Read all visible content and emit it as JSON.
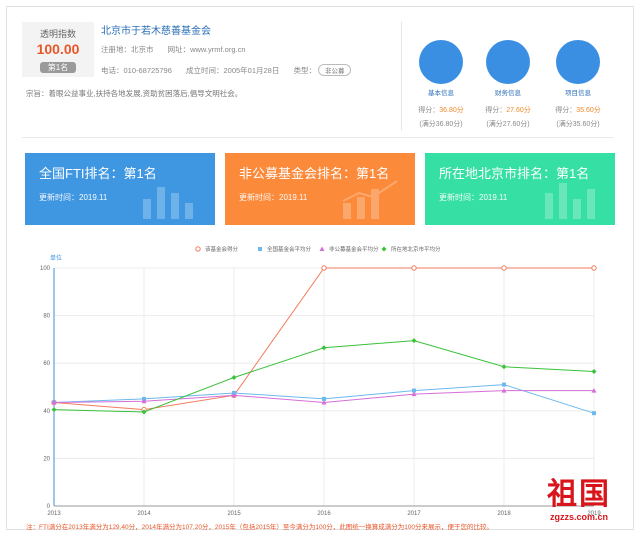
{
  "profile": {
    "index_label": "透明指数",
    "index_value": "100.00",
    "rank_badge": "第1名",
    "org_name": "北京市于若木慈善基金会",
    "reg_place_label": "注册地：北京市",
    "website_label": "网址：",
    "website": "www.yrmf.org.cn",
    "phone_label": "电话：010-68725796",
    "founded_label": "成立时间：2005年01月28日",
    "type_label": "类型：",
    "type_tag": "非公募",
    "mission": "宗旨：着眼公益事业,扶持各地发展,资助贫困落后,倡导文明社会。"
  },
  "scores": [
    {
      "label": "基本信息",
      "score_prefix": "得分：",
      "score": "36.80分",
      "full": "(满分36.80分)"
    },
    {
      "label": "财务信息",
      "score_prefix": "得分：",
      "score": "27.60分",
      "full": "(满分27.60分)"
    },
    {
      "label": "项目信息",
      "score_prefix": "得分：",
      "score": "35.60分",
      "full": "(满分35.60分)"
    }
  ],
  "cards": [
    {
      "title": "全国FTI排名：第1名",
      "time": "更新时间：2019.11",
      "color": "#3f97e2"
    },
    {
      "title": "非公募基金会排名：第1名",
      "time": "更新时间：2019.11",
      "color": "#fb8a3b"
    },
    {
      "title": "所在地北京市排名：第1名",
      "time": "更新时间：2019.11",
      "color": "#36e0a4"
    }
  ],
  "chart_data": {
    "type": "line",
    "ylabel_unit": "单位",
    "x": [
      "2013",
      "2014",
      "2015",
      "2016",
      "2017",
      "2018",
      "2019"
    ],
    "ylim": [
      0,
      100
    ],
    "yticks": [
      0,
      20,
      40,
      60,
      80,
      100
    ],
    "grid": true,
    "legend_position": "top-center",
    "series": [
      {
        "name": "该基金会得分",
        "color": "#f27b5e",
        "marker": "circle-open",
        "values": [
          43.5,
          40.5,
          46.5,
          100,
          100,
          100,
          100
        ]
      },
      {
        "name": "全国基金会平均分",
        "color": "#6cb9ee",
        "marker": "square",
        "values": [
          43.5,
          45,
          47.5,
          45,
          48.5,
          51,
          39
        ]
      },
      {
        "name": "非公募基金会平均分",
        "color": "#d56fd8",
        "marker": "triangle",
        "values": [
          43.5,
          44,
          46.5,
          43.5,
          47,
          48.5,
          48.5
        ]
      },
      {
        "name": "所在地北京市平均分",
        "color": "#39c23a",
        "marker": "diamond",
        "values": [
          40.5,
          39.5,
          54,
          66.5,
          69.5,
          58.5,
          56.5
        ]
      }
    ]
  },
  "note": "注：FTI满分在2013年满分为129.40分，2014年满分为107.20分，2015年（包括2015年）至今满分为100分，此图统一换算成满分为100分来展示，便于您的比较。",
  "watermark": {
    "big": "祖国",
    "url": "zgzzs.com.cn"
  }
}
